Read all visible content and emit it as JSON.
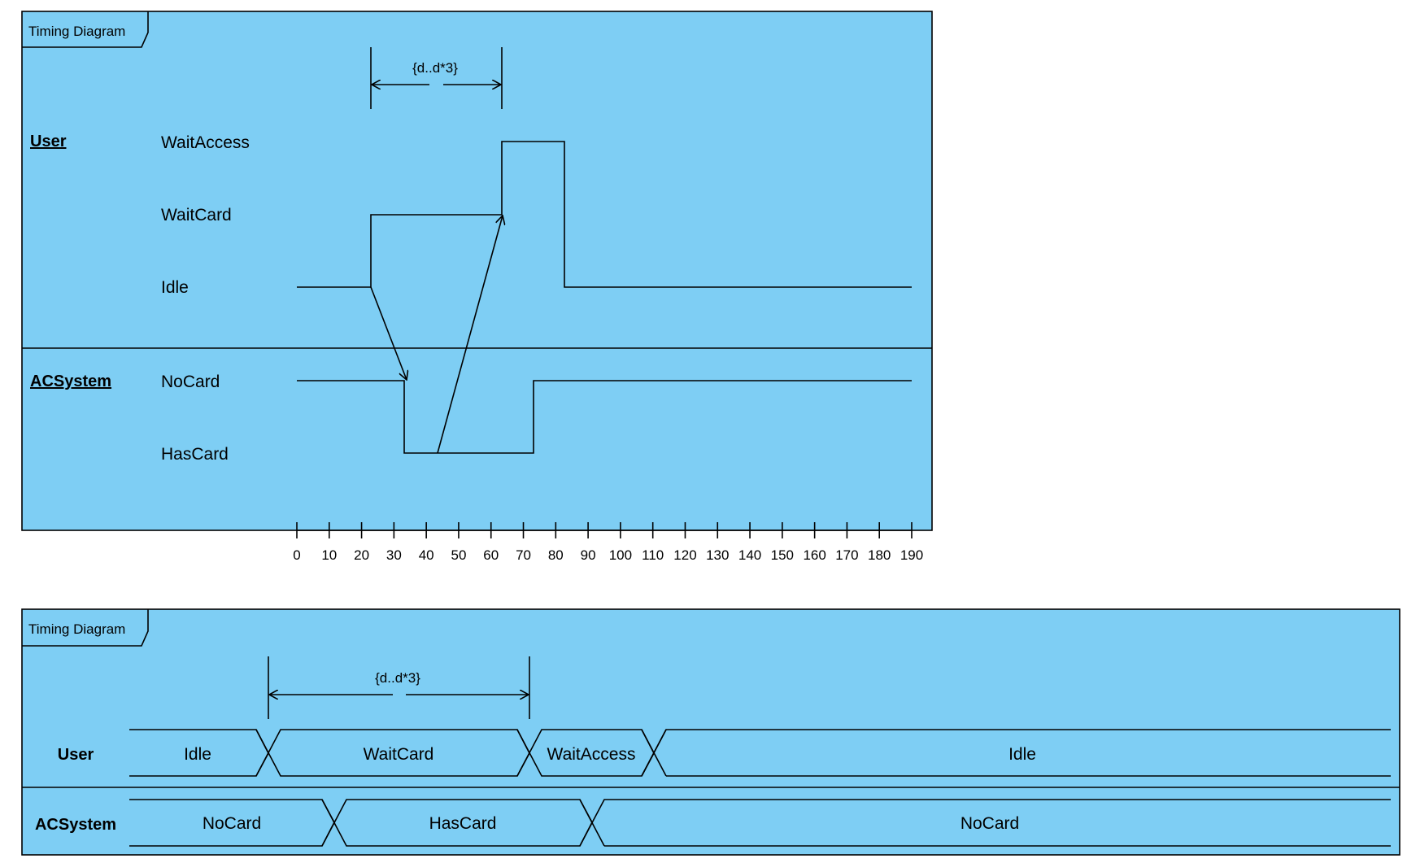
{
  "diagram1": {
    "title": "Timing Diagram",
    "constraint": "{d..d*3}",
    "lifelines": [
      {
        "name": "User",
        "states": [
          "WaitAccess",
          "WaitCard",
          "Idle"
        ]
      },
      {
        "name": "ACSystem",
        "states": [
          "NoCard",
          "HasCard"
        ]
      }
    ],
    "ticks": [
      "0",
      "10",
      "20",
      "30",
      "40",
      "50",
      "60",
      "70",
      "80",
      "90",
      "100",
      "110",
      "120",
      "130",
      "140",
      "150",
      "160",
      "170",
      "180",
      "190"
    ]
  },
  "diagram2": {
    "title": "Timing Diagram",
    "constraint": "{d..d*3}",
    "lifelines": [
      {
        "name": "User",
        "segments": [
          "Idle",
          "WaitCard",
          "WaitAccess",
          "Idle"
        ]
      },
      {
        "name": "ACSystem",
        "segments": [
          "NoCard",
          "HasCard",
          "NoCard"
        ]
      }
    ]
  }
}
